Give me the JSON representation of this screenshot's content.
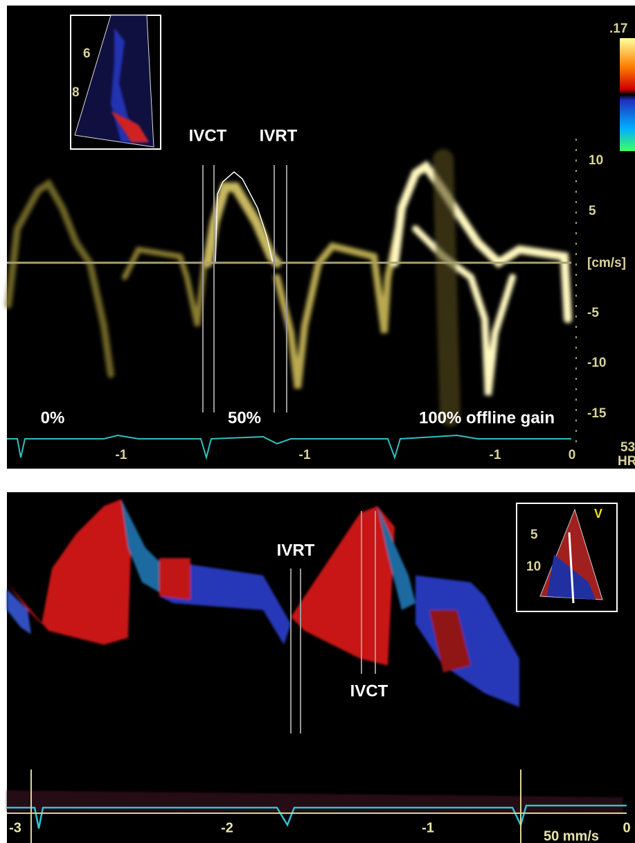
{
  "top_panel": {
    "inset_labels": [
      "6",
      "8"
    ],
    "color_scale_max": ".17",
    "interval_labels": [
      "IVCT",
      "IVRT"
    ],
    "velocity_ticks": [
      "10",
      "5",
      "[cm/s]",
      "-5",
      "-10",
      "-15"
    ],
    "gain_labels": [
      "0%",
      "50%",
      "100% offline gain"
    ],
    "time_ticks": [
      "-1",
      "-1",
      "-1",
      "0"
    ],
    "heart_rate": "53",
    "heart_rate_unit": "HR"
  },
  "bottom_panel": {
    "interval_labels": [
      "IVRT",
      "IVCT"
    ],
    "inset_labels": [
      "V",
      "5",
      "10"
    ],
    "time_ticks": [
      "-3",
      "-2",
      "-1",
      "0"
    ],
    "sweep_speed": "50 mm/s"
  }
}
